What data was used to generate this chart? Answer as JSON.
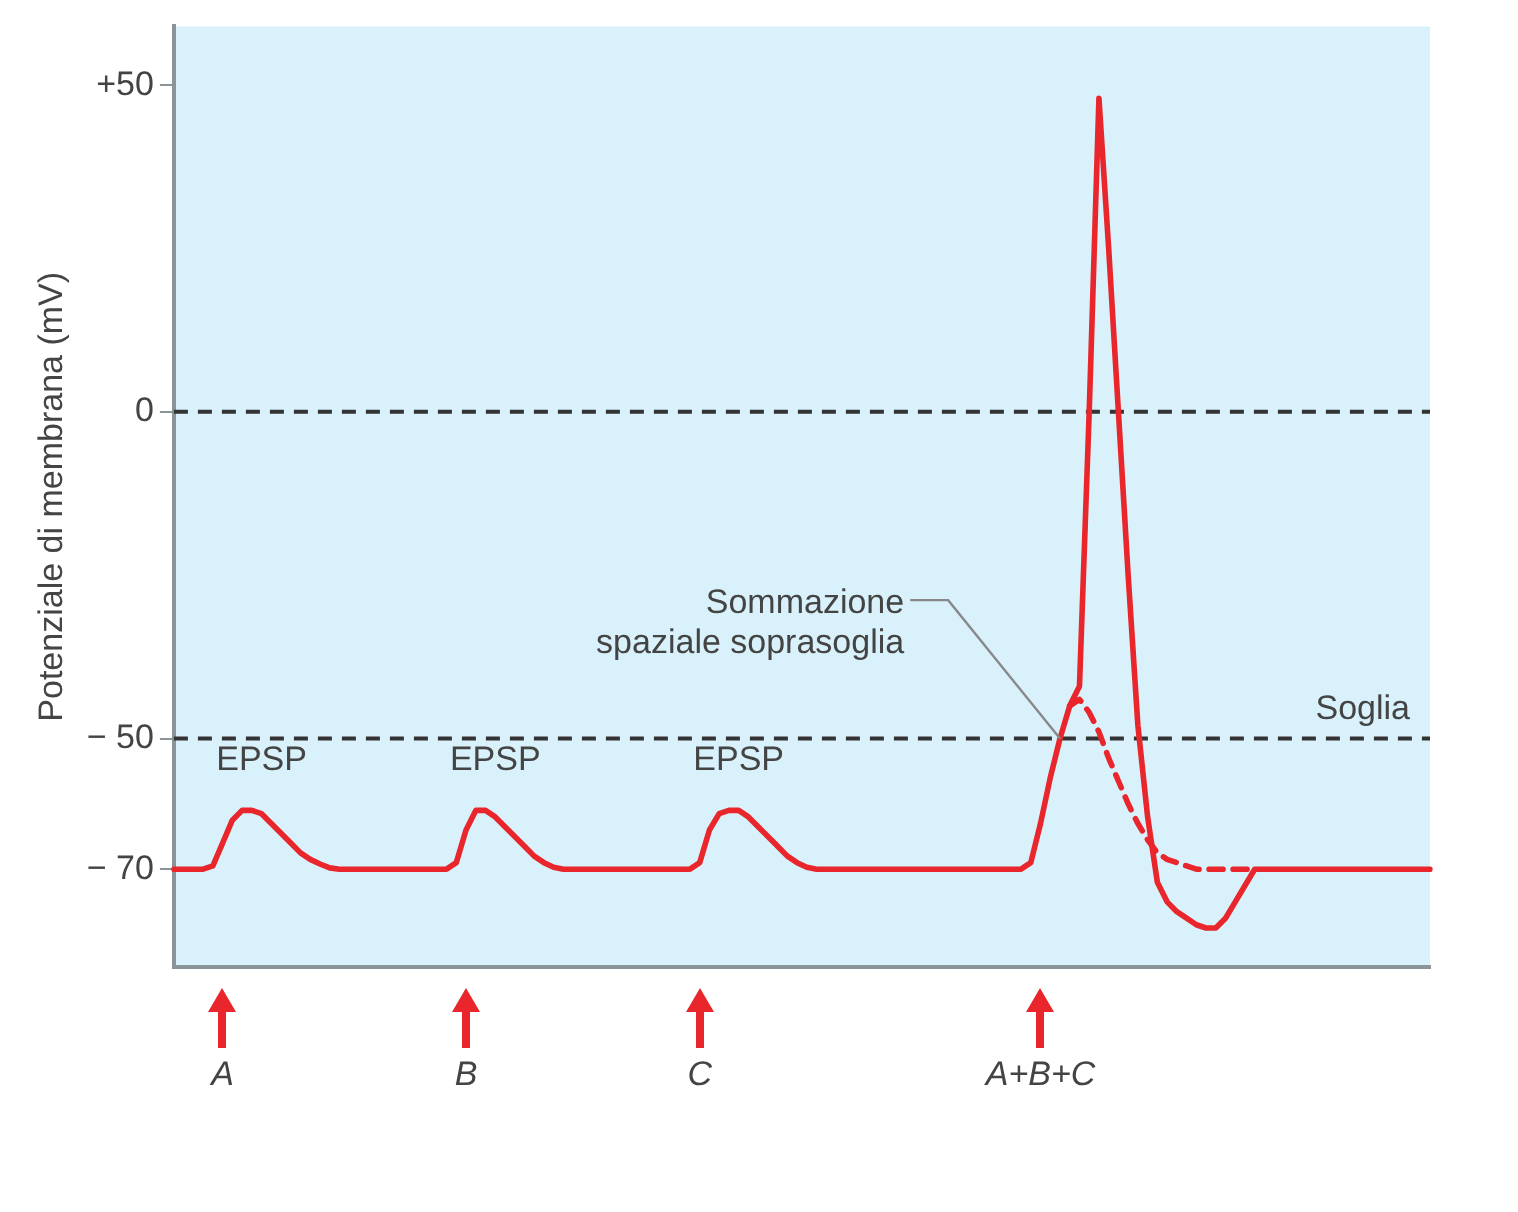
{
  "chart_data": {
    "type": "line",
    "ylabel": "Potenziale di membrana (mV)",
    "categories": [
      null,
      null,
      null,
      null,
      null,
      "A",
      null,
      null,
      null,
      null,
      null,
      null,
      null,
      null,
      null,
      null,
      null,
      null,
      null,
      null,
      null,
      null,
      null,
      null,
      null,
      null,
      null,
      null,
      null,
      null,
      "B",
      null,
      null,
      null,
      null,
      null,
      null,
      null,
      null,
      null,
      null,
      null,
      null,
      null,
      null,
      null,
      null,
      null,
      null,
      null,
      null,
      null,
      null,
      null,
      "C",
      null,
      null,
      null,
      null,
      null,
      null,
      null,
      null,
      null,
      null,
      null,
      null,
      null,
      null,
      null,
      null,
      null,
      null,
      null,
      null,
      null,
      null,
      null,
      null,
      null,
      null,
      null,
      null,
      null,
      null,
      null,
      null,
      null,
      null,
      "A+B+C",
      null,
      null,
      null,
      null,
      null,
      null,
      null,
      null,
      null,
      null,
      null,
      null,
      null,
      null,
      null,
      null,
      null,
      null,
      null,
      null,
      null,
      null,
      null,
      null,
      null,
      null,
      null,
      null,
      null,
      null,
      null,
      null,
      null,
      null,
      null,
      null,
      null,
      null,
      null,
      null
    ],
    "series": [
      {
        "color": "#e8262b",
        "line_style": "solid",
        "values": [
          -70,
          -70,
          -70,
          -70,
          -69.5,
          -66,
          -62.5,
          -61,
          -61,
          -61.5,
          -63,
          -64.5,
          -66,
          -67.5,
          -68.5,
          -69.2,
          -69.8,
          -70,
          -70,
          -70,
          -70,
          -70,
          -70,
          -70,
          -70,
          -70,
          -70,
          -70,
          -70,
          -69,
          -64,
          -61,
          -61,
          -62,
          -63.5,
          -65,
          -66.5,
          -68,
          -69,
          -69.7,
          -70,
          -70,
          -70,
          -70,
          -70,
          -70,
          -70,
          -70,
          -70,
          -70,
          -70,
          -70,
          -70,
          -70,
          -69,
          -64,
          -61.5,
          -61,
          -61,
          -62,
          -63.5,
          -65,
          -66.5,
          -68,
          -69,
          -69.7,
          -70,
          -70,
          -70,
          -70,
          -70,
          -70,
          -70,
          -70,
          -70,
          -70,
          -70,
          -70,
          -70,
          -70,
          -70,
          -70,
          -70,
          -70,
          -70,
          -70,
          -70,
          -70,
          -69,
          -63,
          -56,
          -50,
          -45,
          -42,
          0,
          48,
          25,
          0,
          -25,
          -48,
          -62,
          -72,
          -75,
          -76.5,
          -77.5,
          -78.5,
          -79,
          -79,
          -77.5,
          -75,
          -72.5,
          -70,
          -70,
          -70,
          -70,
          -70,
          -70,
          -70,
          -70,
          -70,
          -70,
          -70,
          -70,
          -70,
          -70,
          -70,
          -70,
          -70,
          -70,
          -70
        ]
      },
      {
        "color": "#e8262b",
        "line_style": "dashed",
        "values": [
          null,
          null,
          null,
          null,
          null,
          null,
          null,
          null,
          null,
          null,
          null,
          null,
          null,
          null,
          null,
          null,
          null,
          null,
          null,
          null,
          null,
          null,
          null,
          null,
          null,
          null,
          null,
          null,
          null,
          null,
          null,
          null,
          null,
          null,
          null,
          null,
          null,
          null,
          null,
          null,
          null,
          null,
          null,
          null,
          null,
          null,
          null,
          null,
          null,
          null,
          null,
          null,
          null,
          null,
          null,
          null,
          null,
          null,
          null,
          null,
          null,
          null,
          null,
          null,
          null,
          null,
          null,
          null,
          null,
          null,
          null,
          null,
          null,
          null,
          null,
          null,
          null,
          null,
          null,
          null,
          null,
          null,
          null,
          null,
          null,
          null,
          null,
          null,
          null,
          null,
          null,
          null,
          -45,
          -44,
          -46,
          -49,
          -53,
          -56.5,
          -60,
          -63,
          -65.5,
          -67.5,
          -68.5,
          -69,
          -69.5,
          -70,
          -70,
          -70,
          -70,
          -70,
          -70,
          -70,
          null,
          null,
          null,
          null,
          null,
          null,
          null,
          null,
          null,
          null,
          null,
          null,
          null,
          null,
          null,
          null,
          null,
          null
        ]
      }
    ],
    "ylim": [
      -85,
      59
    ],
    "yticks": [
      {
        "value": 50,
        "label": "+50"
      },
      0,
      {
        "value": -50,
        "label": "− 50"
      },
      {
        "value": -70,
        "label": "− 70"
      }
    ],
    "ref_lines": [
      {
        "axis": "y",
        "value": 0,
        "label": null,
        "color": "#333333",
        "line_style": "dashed"
      },
      {
        "axis": "y",
        "value": -50,
        "label": "Soglia",
        "color": "#333333",
        "line_style": "dashed"
      }
    ],
    "annotations": [
      "EPSP",
      "EPSP",
      "EPSP",
      {
        "text": "Sommazione spaziale soprasoglia",
        "y": -50
      }
    ],
    "grid": false,
    "legend": false,
    "marker": "none"
  }
}
